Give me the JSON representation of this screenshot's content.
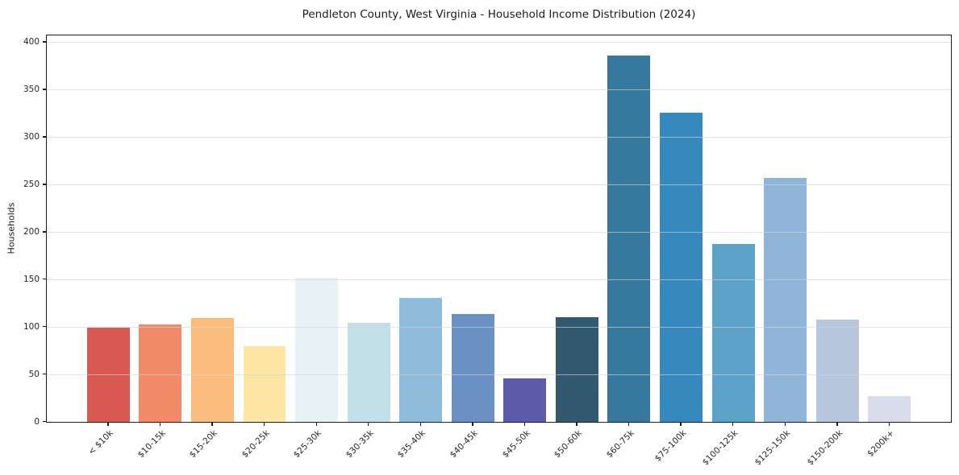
{
  "chart_data": {
    "type": "bar",
    "title": "Pendleton County, West Virginia - Household Income Distribution (2024)",
    "xlabel": "",
    "ylabel": "Households",
    "categories": [
      "< $10k",
      "$10-15k",
      "$15-20k",
      "$20-25k",
      "$25-30k",
      "$30-35k",
      "$35-40k",
      "$40-45k",
      "$45-50k",
      "$50-60k",
      "$60-75k",
      "$75-100k",
      "$100-125k",
      "$125-150k",
      "$150-200k",
      "$200k+"
    ],
    "values": [
      99,
      103,
      109,
      80,
      152,
      104,
      131,
      114,
      46,
      110,
      386,
      326,
      187,
      257,
      108,
      27
    ],
    "bar_colors": [
      "#d95a53",
      "#f28a68",
      "#fbbd7e",
      "#fde6a3",
      "#e7f2f5",
      "#c2e0e8",
      "#8fbcdb",
      "#6b90c4",
      "#5c5caa",
      "#33596e",
      "#37799e",
      "#3689bd",
      "#5ba3c9",
      "#8fb4d8",
      "#b7c8de",
      "#d9dcea"
    ],
    "yticks": [
      0,
      50,
      100,
      150,
      200,
      250,
      300,
      350,
      400
    ],
    "ylim": [
      0,
      407
    ],
    "grid": "horizontal",
    "legend": "none",
    "background_color": "#ffffff",
    "spine_color": "#1a1a1a",
    "gridline_color": "#d5d5d5",
    "tick_label_color": "#262626"
  }
}
